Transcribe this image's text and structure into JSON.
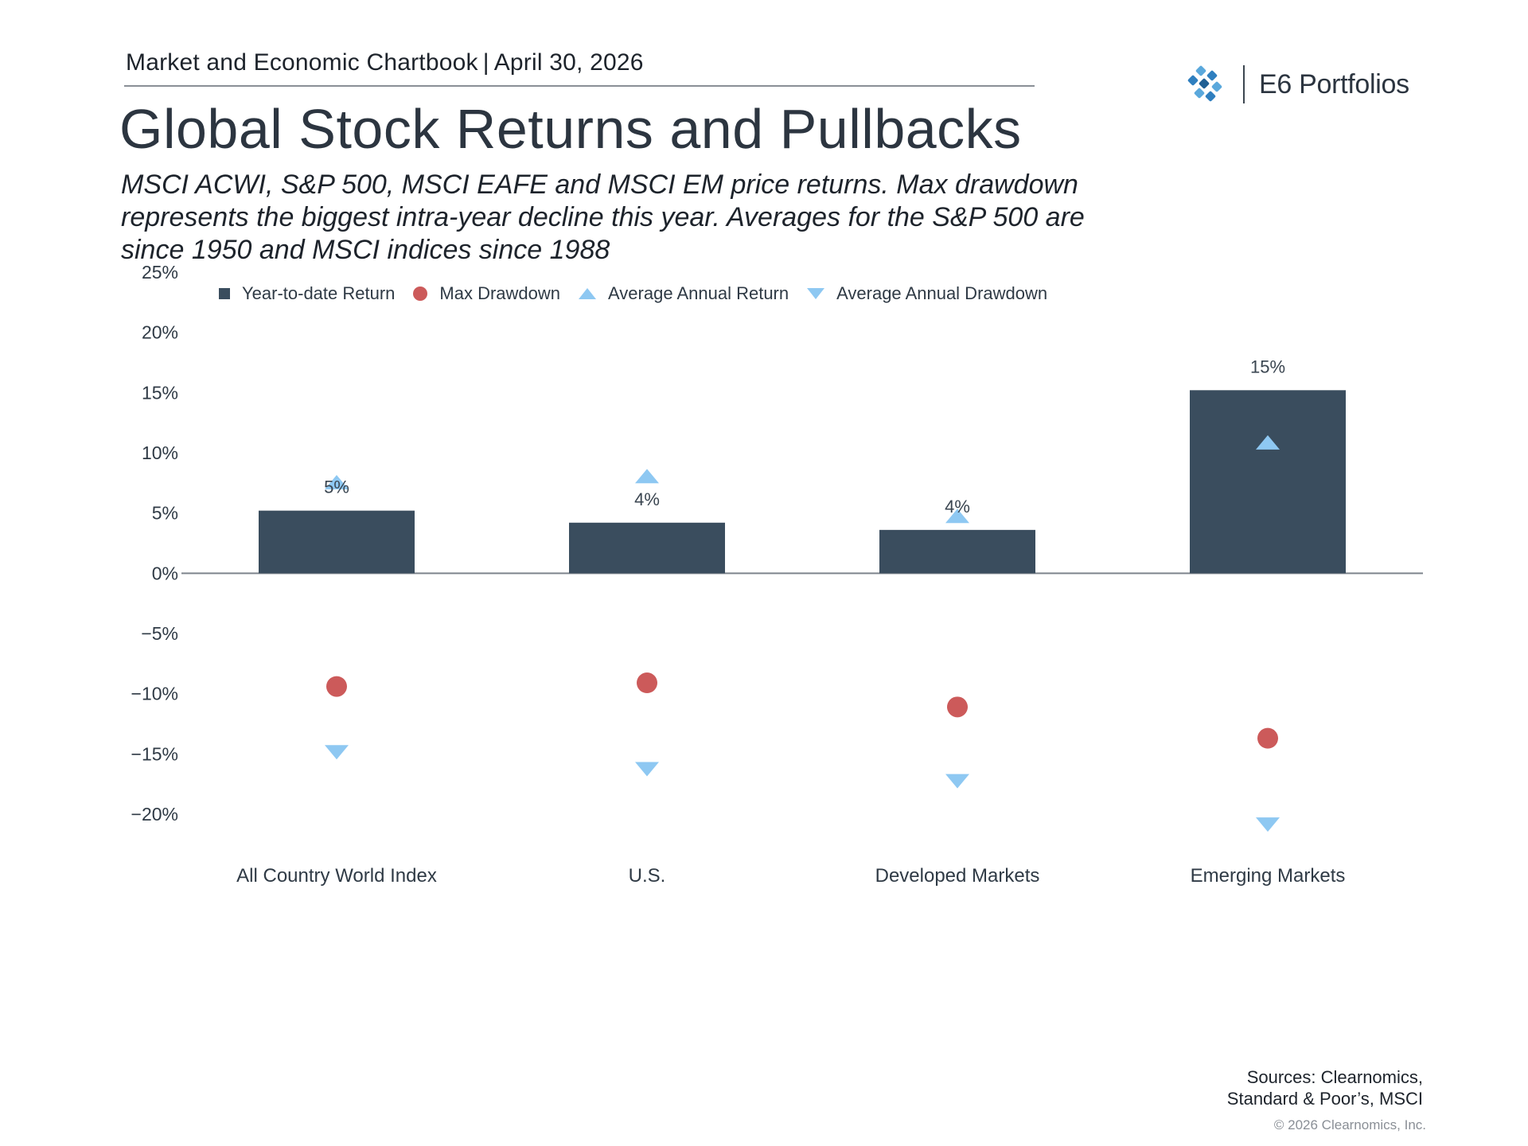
{
  "header": {
    "chartbook": "Market and Economic Chartbook",
    "separator": "|",
    "date": "April 30, 2026",
    "title": "Global Stock Returns and Pullbacks",
    "subtitle": "MSCI ACWI, S&P 500, MSCI EAFE and MSCI EM price returns. Max drawdown represents the biggest intra-year decline this year. Averages for the S&P 500 are since 1950 and MSCI indices since 1988"
  },
  "logo": {
    "text": "E6 Portfolios",
    "icon": "diamond-cluster-icon",
    "colors": [
      "#2f7fbf",
      "#5aa8dc",
      "#1f5f94"
    ]
  },
  "legend": {
    "items": [
      {
        "label": "Year-to-date Return",
        "marker": "square",
        "color": "#3a4d5e"
      },
      {
        "label": "Max Drawdown",
        "marker": "circle",
        "color": "#cc5a5a"
      },
      {
        "label": "Average Annual Return",
        "marker": "triangle-up",
        "color": "#8ec8f2"
      },
      {
        "label": "Average Annual Drawdown",
        "marker": "triangle-down",
        "color": "#8ec8f2"
      }
    ]
  },
  "chart_data": {
    "type": "bar",
    "categories": [
      "All Country World Index",
      "U.S.",
      "Developed Markets",
      "Emerging Markets"
    ],
    "series": [
      {
        "name": "Year-to-date Return",
        "kind": "bar",
        "color": "#3a4d5e",
        "values": [
          5.2,
          4.2,
          3.6,
          15.2
        ]
      },
      {
        "name": "Max Drawdown",
        "kind": "circle",
        "color": "#cc5a5a",
        "values": [
          -9.4,
          -9.1,
          -11.1,
          -13.7
        ]
      },
      {
        "name": "Average Annual Return",
        "kind": "triangle-up",
        "color": "#8ec8f2",
        "values": [
          7.5,
          8.0,
          4.7,
          10.8
        ]
      },
      {
        "name": "Average Annual Drawdown",
        "kind": "triangle-down",
        "color": "#8ec8f2",
        "values": [
          -14.8,
          -16.2,
          -17.2,
          -20.8
        ]
      }
    ],
    "bar_labels": [
      "5%",
      "4%",
      "4%",
      "15%"
    ],
    "yticks": [
      25,
      20,
      15,
      10,
      5,
      0,
      -5,
      -10,
      -15,
      -20
    ],
    "ytick_labels": [
      "25%",
      "20%",
      "15%",
      "10%",
      "5%",
      "0%",
      "−5%",
      "−10%",
      "−15%",
      "−20%"
    ],
    "ylim": [
      -20,
      25
    ],
    "grid": false,
    "legend_position": "top"
  },
  "footer": {
    "sources_line1": "Sources: Clearnomics,",
    "sources_line2": "Standard & Poor’s, MSCI",
    "copyright": "© 2026 Clearnomics, Inc."
  }
}
